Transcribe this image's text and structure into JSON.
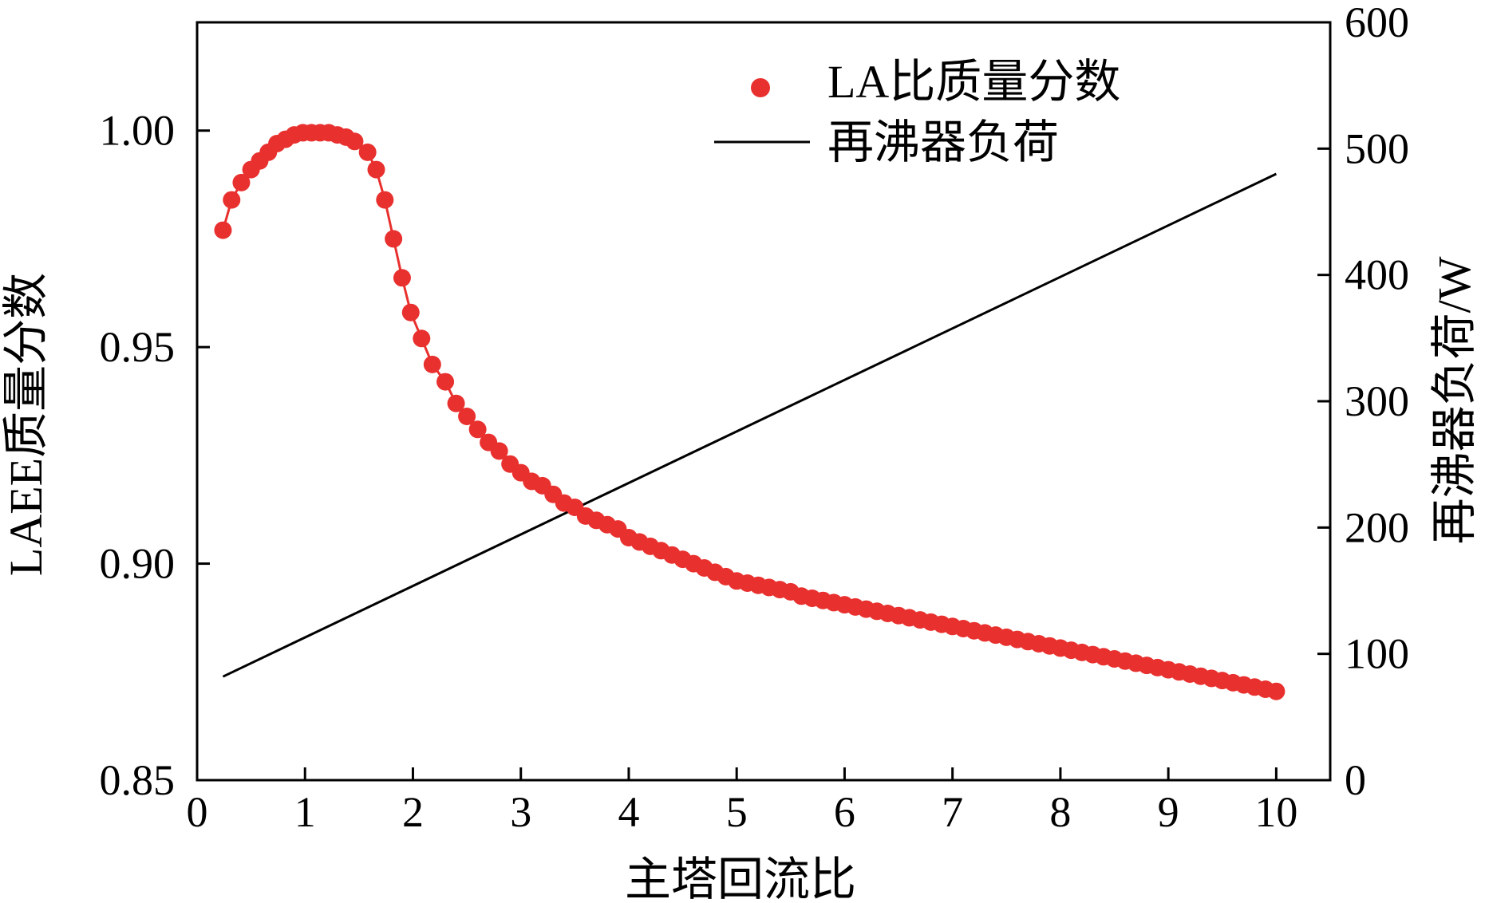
{
  "chart_data": {
    "type": "scatter",
    "xlabel": "主塔回流比",
    "ylabel": "LAEE质量分数",
    "y2label": "再沸器负荷/W",
    "xlim": [
      0,
      10.5
    ],
    "ylim": [
      0.85,
      1.025
    ],
    "y2lim": [
      0,
      600
    ],
    "x_ticks": [
      "0",
      "1",
      "2",
      "3",
      "4",
      "5",
      "6",
      "7",
      "8",
      "9",
      "10"
    ],
    "y_ticks": [
      "0.85",
      "0.90",
      "0.95",
      "1.00"
    ],
    "y2_ticks": [
      "0",
      "100",
      "200",
      "300",
      "400",
      "500",
      "600"
    ],
    "grid": false,
    "legend_position": "top-right",
    "colors": {
      "la_series": "#e8302e",
      "reboiler_series": "#000000"
    },
    "series": [
      {
        "name": "LA比质量分数",
        "axis": "left",
        "style": "markers+line",
        "x": [
          0.24,
          0.32,
          0.41,
          0.5,
          0.58,
          0.66,
          0.74,
          0.82,
          0.9,
          0.98,
          1.06,
          1.14,
          1.22,
          1.3,
          1.38,
          1.46,
          1.58,
          1.66,
          1.74,
          1.82,
          1.9,
          1.98,
          2.08,
          2.18,
          2.3,
          2.4,
          2.5,
          2.6,
          2.7,
          2.8,
          2.9,
          3.0,
          3.1,
          3.2,
          3.3,
          3.4,
          3.5,
          3.6,
          3.7,
          3.8,
          3.9,
          4.0,
          4.1,
          4.2,
          4.3,
          4.4,
          4.5,
          4.6,
          4.7,
          4.8,
          4.9,
          5.0,
          5.1,
          5.2,
          5.3,
          5.4,
          5.5,
          5.6,
          5.7,
          5.8,
          5.9,
          6.0,
          6.1,
          6.2,
          6.3,
          6.4,
          6.5,
          6.6,
          6.7,
          6.8,
          6.9,
          7.0,
          7.1,
          7.2,
          7.3,
          7.4,
          7.5,
          7.6,
          7.7,
          7.8,
          7.9,
          8.0,
          8.1,
          8.2,
          8.3,
          8.4,
          8.5,
          8.6,
          8.7,
          8.8,
          8.9,
          9.0,
          9.1,
          9.2,
          9.3,
          9.4,
          9.5,
          9.6,
          9.7,
          9.8,
          9.9,
          10.0
        ],
        "y": [
          0.977,
          0.984,
          0.988,
          0.991,
          0.993,
          0.995,
          0.997,
          0.998,
          0.999,
          0.9995,
          0.9995,
          0.9995,
          0.9995,
          0.999,
          0.9985,
          0.9975,
          0.995,
          0.991,
          0.984,
          0.975,
          0.966,
          0.958,
          0.952,
          0.946,
          0.942,
          0.937,
          0.934,
          0.931,
          0.928,
          0.926,
          0.923,
          0.921,
          0.919,
          0.918,
          0.916,
          0.914,
          0.913,
          0.911,
          0.91,
          0.909,
          0.908,
          0.906,
          0.905,
          0.904,
          0.903,
          0.902,
          0.901,
          0.9,
          0.899,
          0.898,
          0.897,
          0.896,
          0.8955,
          0.895,
          0.8945,
          0.894,
          0.8935,
          0.8925,
          0.892,
          0.8915,
          0.891,
          0.8905,
          0.89,
          0.8895,
          0.889,
          0.8885,
          0.888,
          0.8875,
          0.887,
          0.8865,
          0.886,
          0.8855,
          0.885,
          0.8845,
          0.884,
          0.8835,
          0.883,
          0.8825,
          0.882,
          0.8815,
          0.881,
          0.8805,
          0.88,
          0.8795,
          0.879,
          0.8785,
          0.878,
          0.8775,
          0.877,
          0.8765,
          0.876,
          0.8755,
          0.875,
          0.8745,
          0.874,
          0.8735,
          0.873,
          0.8725,
          0.872,
          0.8715,
          0.871,
          0.8705
        ]
      },
      {
        "name": "再沸器负荷",
        "axis": "right",
        "style": "line",
        "x": [
          0.24,
          10.0
        ],
        "y": [
          82,
          480
        ]
      }
    ]
  }
}
